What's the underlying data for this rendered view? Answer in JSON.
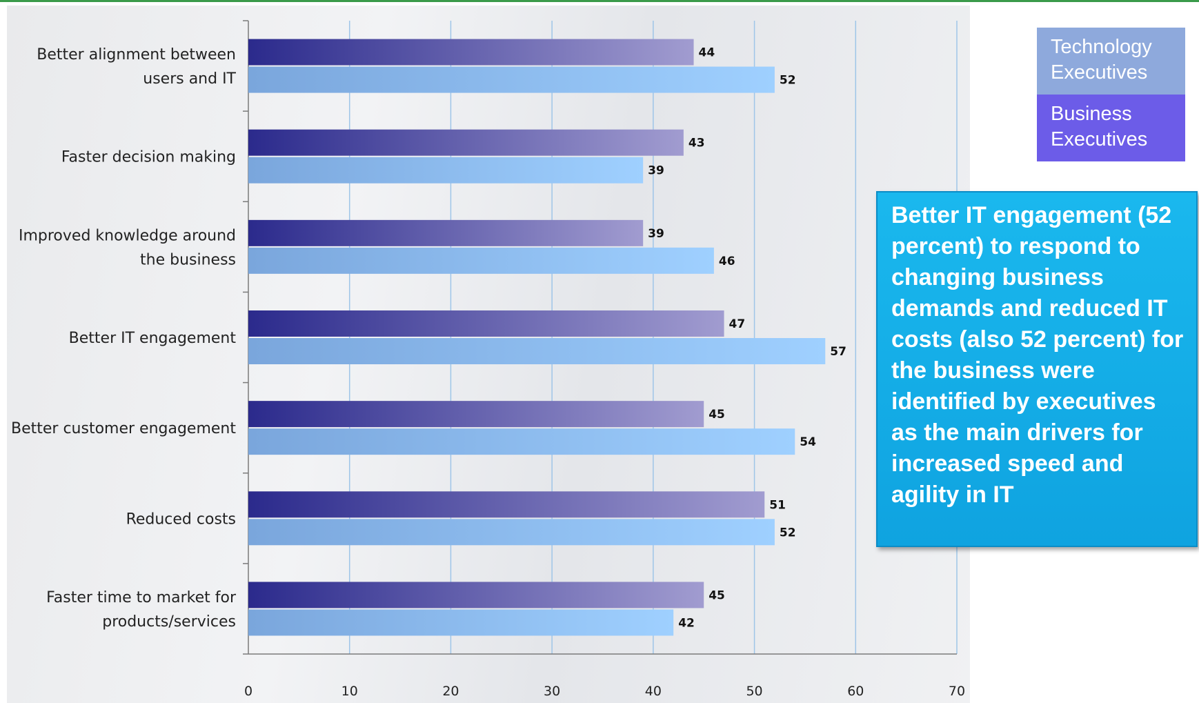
{
  "chart_data": {
    "type": "bar",
    "orientation": "horizontal",
    "categories": [
      [
        "Better alignment between",
        "users and IT"
      ],
      [
        "Faster decision making"
      ],
      [
        "Improved knowledge around",
        "the business"
      ],
      [
        "Better IT engagement"
      ],
      [
        "Better customer engagement"
      ],
      [
        "Reduced costs"
      ],
      [
        "Faster time to market for",
        "products/services"
      ]
    ],
    "series": [
      {
        "name": "Business Executives",
        "values": [
          44,
          43,
          39,
          47,
          45,
          51,
          45
        ]
      },
      {
        "name": "Technology Executives",
        "values": [
          52,
          39,
          46,
          57,
          54,
          52,
          42
        ]
      }
    ],
    "xlim": [
      0,
      70
    ],
    "xticks": [
      "0",
      "10",
      "20",
      "30",
      "40",
      "50",
      "60",
      "70"
    ],
    "grid": true,
    "legend_position": "top-right"
  },
  "legend": {
    "technology": "Technology Executives",
    "business": "Business Executives"
  },
  "colors": {
    "business_start": "#2b2a8c",
    "business_end": "#a19cd0",
    "technology_start": "#7aa6dc",
    "technology_end": "#9fd0ff",
    "grid": "#9ec5e8",
    "callout": "#14aee8"
  },
  "callout": {
    "text": "Better IT engagement (52 percent) to respond to changing business demands and reduced IT costs (also 52 percent) for the business were identified by executives as the main drivers for increased speed and agility in IT"
  }
}
